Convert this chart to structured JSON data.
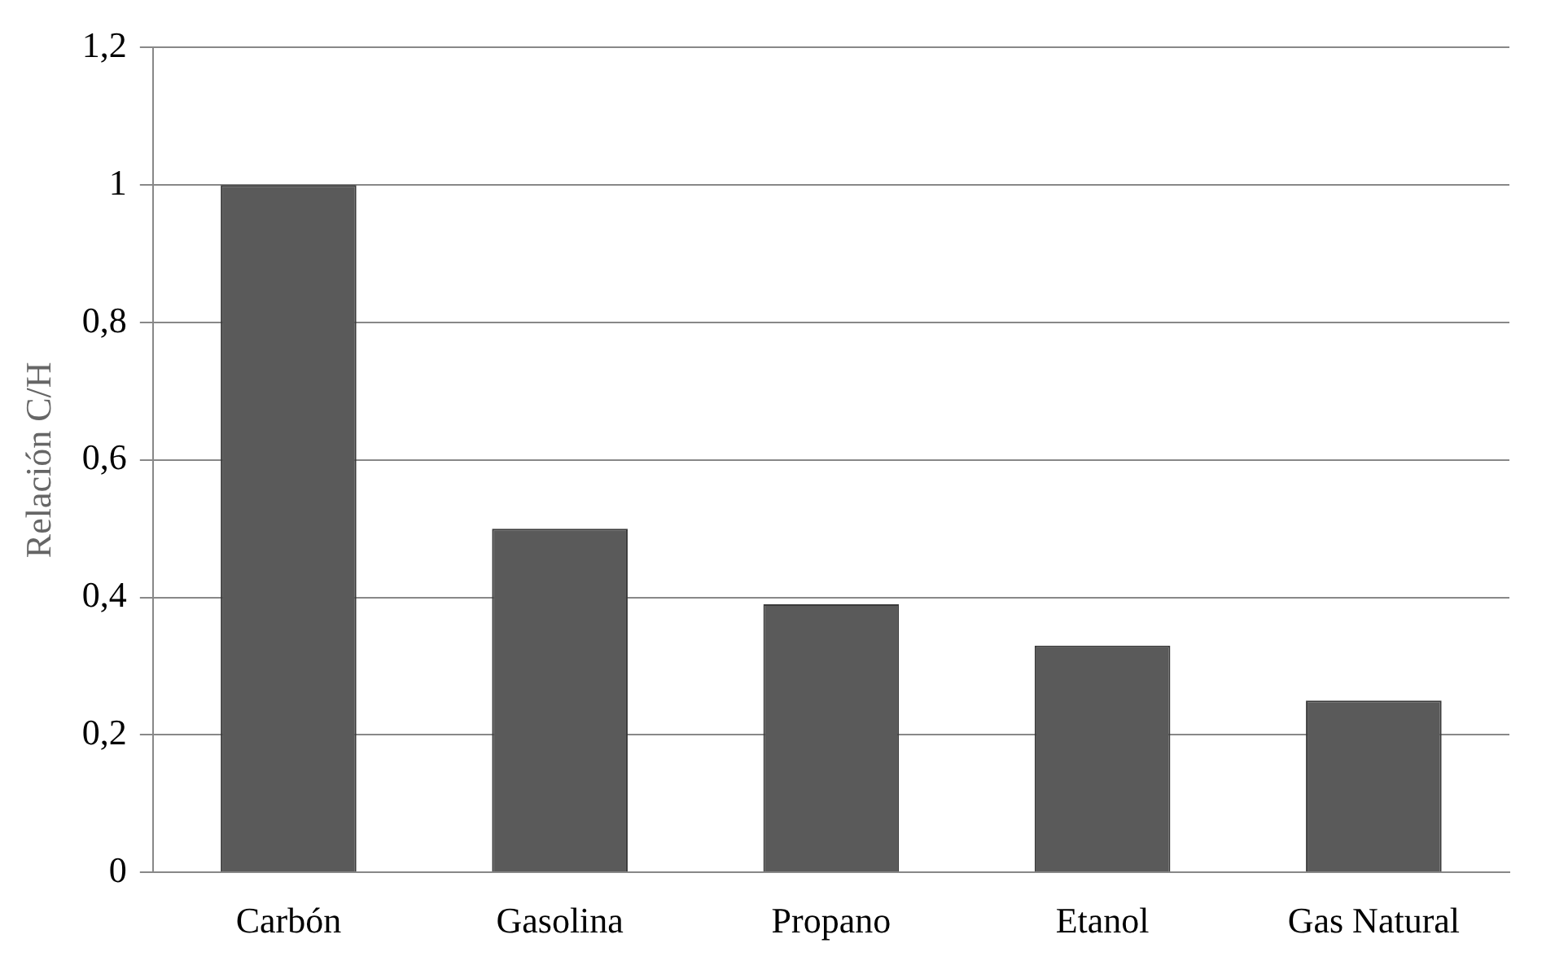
{
  "chart_data": {
    "type": "bar",
    "ylabel": "Relación C/H",
    "categories": [
      "Carbón",
      "Gasolina",
      "Propano",
      "Etanol",
      "Gas Natural"
    ],
    "values": [
      1.0,
      0.5,
      0.39,
      0.33,
      0.25
    ],
    "color": "#5a5a5a",
    "ylim": [
      0,
      1.2
    ],
    "yticks": [
      0,
      {
        "value": 0.2,
        "label": "0,2"
      },
      {
        "value": 0.4,
        "label": "0,4"
      },
      {
        "value": 0.6,
        "label": "0,6"
      },
      {
        "value": 0.8,
        "label": "0,8"
      },
      1,
      {
        "value": 1.2,
        "label": "1,2"
      }
    ],
    "grid": "y",
    "legend": false
  }
}
